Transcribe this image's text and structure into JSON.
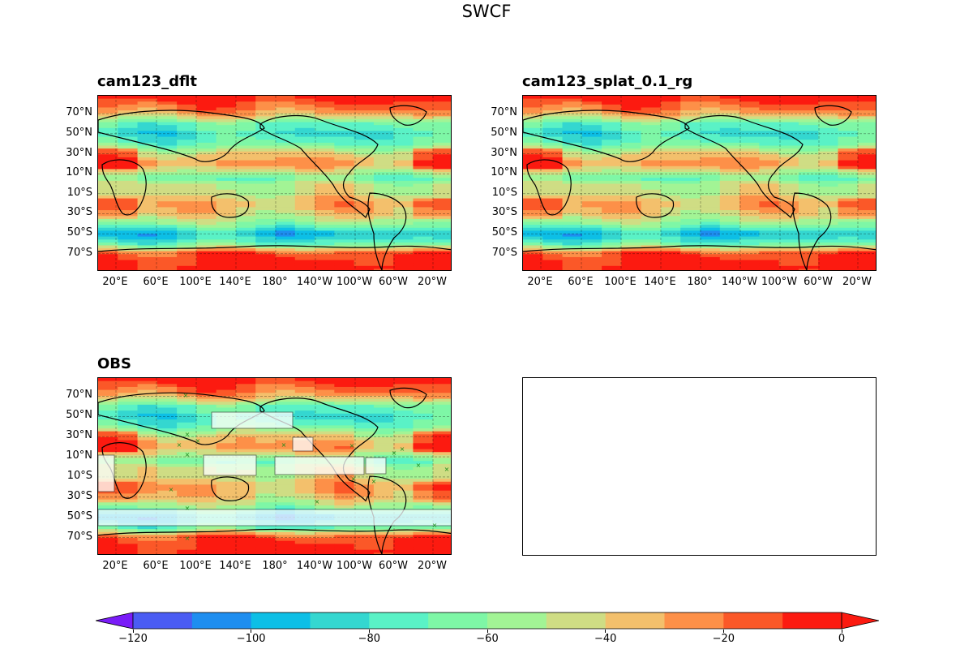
{
  "title": "SWCF",
  "panels": [
    {
      "name": "cam123_dflt",
      "title": "cam123_dflt"
    },
    {
      "name": "cam123_splat",
      "title": "cam123_splat_0.1_rg"
    },
    {
      "name": "obs",
      "title": "OBS"
    }
  ],
  "lat_labels": [
    "70°N",
    "50°N",
    "30°N",
    "10°N",
    "10°S",
    "30°S",
    "50°S",
    "70°S"
  ],
  "lon_labels": [
    "20°E",
    "60°E",
    "100°E",
    "140°E",
    "180°",
    "140°W",
    "100°W",
    "60°W",
    "20°W"
  ],
  "colorbar": {
    "levels": [
      -130,
      -120,
      -110,
      -100,
      -90,
      -80,
      -70,
      -60,
      -50,
      -40,
      -30,
      -20,
      -10,
      0
    ],
    "colors": [
      "#7a1cf8",
      "#4a5cf3",
      "#1e8ef0",
      "#0dbfe6",
      "#34d7d0",
      "#5af2c6",
      "#7ef7a6",
      "#a2f495",
      "#cfdd84",
      "#f3c06c",
      "#fd9048",
      "#fb5828",
      "#fc1a10"
    ],
    "tick_values": [
      -120,
      -100,
      -80,
      -60,
      -40,
      -20,
      0
    ],
    "tick_labels": [
      "−120",
      "−100",
      "−80",
      "−60",
      "−40",
      "−20",
      "0"
    ]
  },
  "chart_data": {
    "type": "heatmap",
    "title": "SWCF",
    "variable": "SWCF",
    "subplots": [
      "cam123_dflt",
      "cam123_splat_0.1_rg",
      "OBS"
    ],
    "colorbar_range": [
      -130,
      0
    ],
    "colorbar_step": 10,
    "zonal_profile_approx": [
      {
        "lat": 85,
        "value": -5
      },
      {
        "lat": 70,
        "value": -30
      },
      {
        "lat": 60,
        "value": -70
      },
      {
        "lat": 50,
        "value": -80
      },
      {
        "lat": 40,
        "value": -70
      },
      {
        "lat": 30,
        "value": -40
      },
      {
        "lat": 20,
        "value": -25
      },
      {
        "lat": 10,
        "value": -55
      },
      {
        "lat": 5,
        "value": -70
      },
      {
        "lat": 0,
        "value": -50
      },
      {
        "lat": -10,
        "value": -45
      },
      {
        "lat": -20,
        "value": -30
      },
      {
        "lat": -30,
        "value": -40
      },
      {
        "lat": -40,
        "value": -60
      },
      {
        "lat": -50,
        "value": -95
      },
      {
        "lat": -60,
        "value": -70
      },
      {
        "lat": -70,
        "value": -10
      },
      {
        "lat": -85,
        "value": -2
      }
    ]
  }
}
